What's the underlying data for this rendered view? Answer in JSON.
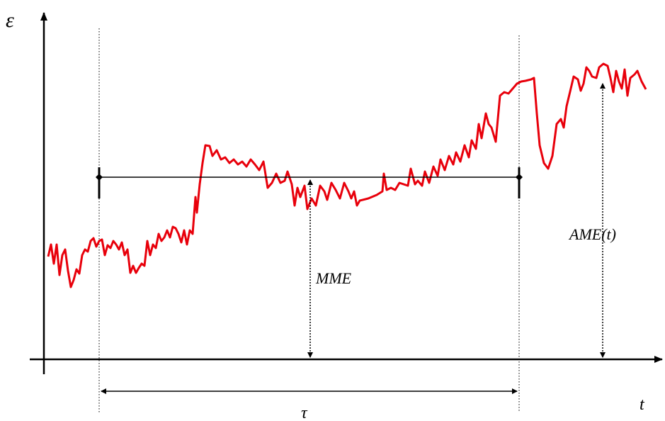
{
  "axes": {
    "y_label": "ε",
    "x_label": "t"
  },
  "annotations": {
    "interval": "τ",
    "mean": "MME",
    "accumulated": "AME(t)"
  }
}
